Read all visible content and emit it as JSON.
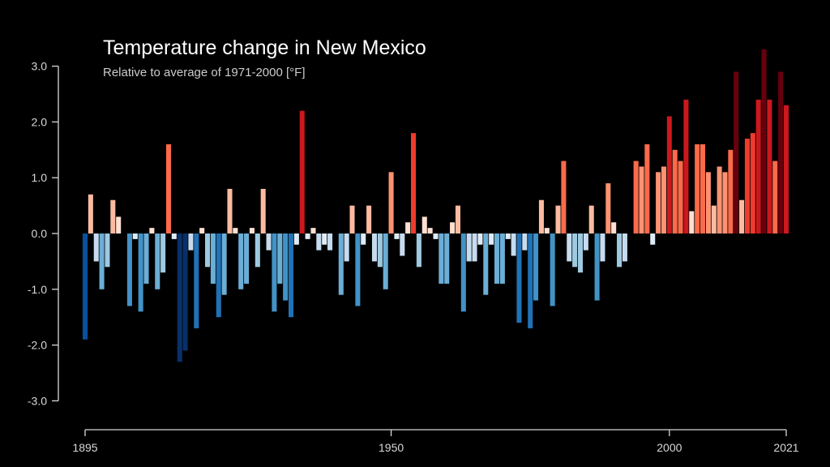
{
  "chart_data": {
    "type": "bar",
    "title": "Temperature change in New Mexico",
    "subtitle": "Relative to average of 1971-2000  [°F]",
    "xlabel": "",
    "ylabel": "",
    "x_range": [
      1895,
      2021
    ],
    "ylim": [
      -3.0,
      3.0
    ],
    "y_ticks": [
      "-3.0",
      "-2.0",
      "-1.0",
      "0.0",
      "1.0",
      "2.0",
      "3.0"
    ],
    "x_ticks": [
      "1895",
      "1950",
      "2000",
      "2021"
    ],
    "grid": false,
    "legend": "none",
    "color_scale": {
      "negative": [
        "#deebf7",
        "#c6dbef",
        "#9ecae1",
        "#6baed6",
        "#4292c6",
        "#2171b5",
        "#08519c",
        "#08306b"
      ],
      "positive": [
        "#fee0d2",
        "#fcbba1",
        "#fc9272",
        "#fb6a4a",
        "#ef3b2c",
        "#cb181d",
        "#a50f15",
        "#67000d"
      ]
    },
    "years": [
      1895,
      1896,
      1897,
      1898,
      1899,
      1900,
      1901,
      1902,
      1903,
      1904,
      1905,
      1906,
      1907,
      1908,
      1909,
      1910,
      1911,
      1912,
      1913,
      1914,
      1915,
      1916,
      1917,
      1918,
      1919,
      1920,
      1921,
      1922,
      1923,
      1924,
      1925,
      1926,
      1927,
      1928,
      1929,
      1930,
      1931,
      1932,
      1933,
      1934,
      1935,
      1936,
      1937,
      1938,
      1939,
      1940,
      1941,
      1942,
      1943,
      1944,
      1945,
      1946,
      1947,
      1948,
      1949,
      1950,
      1951,
      1952,
      1953,
      1954,
      1955,
      1956,
      1957,
      1958,
      1959,
      1960,
      1961,
      1962,
      1963,
      1964,
      1965,
      1966,
      1967,
      1968,
      1969,
      1970,
      1971,
      1972,
      1973,
      1974,
      1975,
      1976,
      1977,
      1978,
      1979,
      1980,
      1981,
      1982,
      1983,
      1984,
      1985,
      1986,
      1987,
      1988,
      1989,
      1990,
      1991,
      1992,
      1993,
      1994,
      1995,
      1996,
      1997,
      1998,
      1999,
      2000,
      2001,
      2002,
      2003,
      2004,
      2005,
      2006,
      2007,
      2008,
      2009,
      2010,
      2011,
      2012,
      2013,
      2014,
      2015,
      2016,
      2017,
      2018,
      2019,
      2020,
      2021
    ],
    "values": [
      -1.9,
      0.7,
      -0.5,
      -1.0,
      -0.6,
      0.6,
      0.3,
      0.0,
      -1.3,
      -0.1,
      -1.4,
      -0.9,
      0.1,
      -1.0,
      -0.7,
      1.6,
      -0.1,
      -2.3,
      -2.1,
      -0.3,
      -1.7,
      0.1,
      -0.6,
      -0.9,
      -1.5,
      -1.1,
      0.8,
      0.1,
      -1.0,
      -0.9,
      0.1,
      -0.6,
      0.8,
      -0.3,
      -1.4,
      -0.9,
      -1.2,
      -1.5,
      -0.2,
      2.2,
      -0.1,
      0.1,
      -0.3,
      -0.2,
      -0.3,
      0.0,
      -1.1,
      -0.5,
      0.5,
      -1.3,
      -0.2,
      0.5,
      -0.5,
      -0.6,
      -1.0,
      1.1,
      -0.1,
      -0.4,
      0.2,
      1.8,
      -0.6,
      0.3,
      0.1,
      -0.1,
      -0.9,
      -0.9,
      0.2,
      0.5,
      -1.4,
      -0.5,
      -0.5,
      -0.2,
      -1.1,
      -0.2,
      -0.9,
      -0.9,
      -0.1,
      -0.4,
      -1.6,
      -0.3,
      -1.7,
      -1.2,
      0.6,
      0.1,
      -1.3,
      0.5,
      1.3,
      -0.5,
      -0.6,
      -0.7,
      -0.3,
      0.5,
      -1.2,
      -0.5,
      0.9,
      0.2,
      -0.6,
      -0.5,
      0.0,
      1.3,
      1.2,
      1.6,
      -0.2,
      1.1,
      1.2,
      2.1,
      1.5,
      1.3,
      2.4,
      0.4,
      1.6,
      1.6,
      1.1,
      0.5,
      1.2,
      1.1,
      1.5,
      2.9,
      0.6,
      1.7,
      1.8,
      2.4,
      3.3,
      2.4,
      1.3,
      2.9,
      2.3
    ]
  }
}
